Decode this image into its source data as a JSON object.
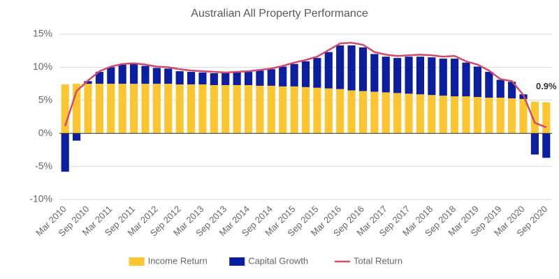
{
  "chart_data": {
    "type": "bar",
    "stacked": true,
    "title": "Australian All Property Performance",
    "categories": [
      "Mar 2010",
      null,
      "Sep 2010",
      null,
      "Mar 2011",
      null,
      "Sep 2011",
      null,
      "Mar 2012",
      null,
      "Sep 2012",
      null,
      "Mar 2013",
      null,
      "Sep 2013",
      null,
      "Mar 2014",
      null,
      "Sep 2014",
      null,
      "Mar 2015",
      null,
      "Sep 2015",
      null,
      "Mar 2016",
      null,
      "Sep 2016",
      null,
      "Mar 2017",
      null,
      "Sep 2017",
      null,
      "Mar 2018",
      null,
      "Sep 2018",
      null,
      "Mar 2019",
      null,
      "Sep 2019",
      null,
      "Mar 2020",
      null,
      "Sep 2020"
    ],
    "series": [
      {
        "name": "Income Return",
        "type": "bar",
        "color": "#fcc630",
        "values": [
          7.4,
          7.5,
          7.5,
          7.5,
          7.5,
          7.5,
          7.5,
          7.5,
          7.5,
          7.5,
          7.4,
          7.4,
          7.4,
          7.3,
          7.3,
          7.3,
          7.3,
          7.2,
          7.2,
          7.1,
          7.1,
          7.0,
          6.9,
          6.8,
          6.7,
          6.5,
          6.4,
          6.3,
          6.2,
          6.1,
          6.0,
          5.9,
          5.8,
          5.7,
          5.6,
          5.6,
          5.5,
          5.4,
          5.4,
          5.3,
          5.2,
          4.8,
          4.7
        ]
      },
      {
        "name": "Capital Growth",
        "type": "bar",
        "color": "#0b1f9e",
        "values": [
          -5.8,
          -1.1,
          0.4,
          1.8,
          2.5,
          2.9,
          3.0,
          2.7,
          2.4,
          2.3,
          2.0,
          1.9,
          1.8,
          1.8,
          1.9,
          1.9,
          2.0,
          2.3,
          2.5,
          3.0,
          3.4,
          3.9,
          4.5,
          5.5,
          6.6,
          6.8,
          6.6,
          5.7,
          5.4,
          5.3,
          5.6,
          5.7,
          5.7,
          5.6,
          5.7,
          5.1,
          4.6,
          3.9,
          2.7,
          2.5,
          0.7,
          -3.2,
          -3.7
        ]
      },
      {
        "name": "Total Return",
        "type": "line",
        "color": "#d04a6c",
        "values": [
          1.1,
          6.4,
          8.0,
          9.4,
          10.1,
          10.5,
          10.6,
          10.4,
          10.1,
          10.0,
          9.7,
          9.5,
          9.4,
          9.3,
          9.2,
          9.3,
          9.4,
          9.6,
          9.8,
          10.2,
          10.7,
          11.1,
          11.6,
          12.6,
          13.6,
          13.7,
          13.4,
          12.3,
          11.9,
          11.7,
          11.8,
          11.9,
          11.8,
          11.6,
          11.7,
          10.9,
          10.4,
          9.5,
          8.2,
          7.9,
          5.8,
          1.6,
          0.9
        ],
        "value_labels": [
          null,
          null,
          null,
          null,
          null,
          null,
          null,
          null,
          null,
          null,
          null,
          null,
          null,
          null,
          null,
          null,
          null,
          null,
          null,
          null,
          null,
          null,
          null,
          null,
          null,
          null,
          null,
          null,
          null,
          null,
          null,
          null,
          null,
          null,
          null,
          null,
          null,
          null,
          null,
          null,
          null,
          null,
          "0.9%"
        ]
      }
    ],
    "ylim": [
      -10,
      15
    ],
    "yticks": [
      {
        "value": -10,
        "label": "-10%"
      },
      {
        "value": -5,
        "label": "-5%"
      },
      {
        "value": 0,
        "label": "0%"
      },
      {
        "value": 5,
        "label": "5%"
      },
      {
        "value": 10,
        "label": "10%"
      },
      {
        "value": 15,
        "label": "15%"
      }
    ],
    "grid": true,
    "legend": "bottom"
  }
}
